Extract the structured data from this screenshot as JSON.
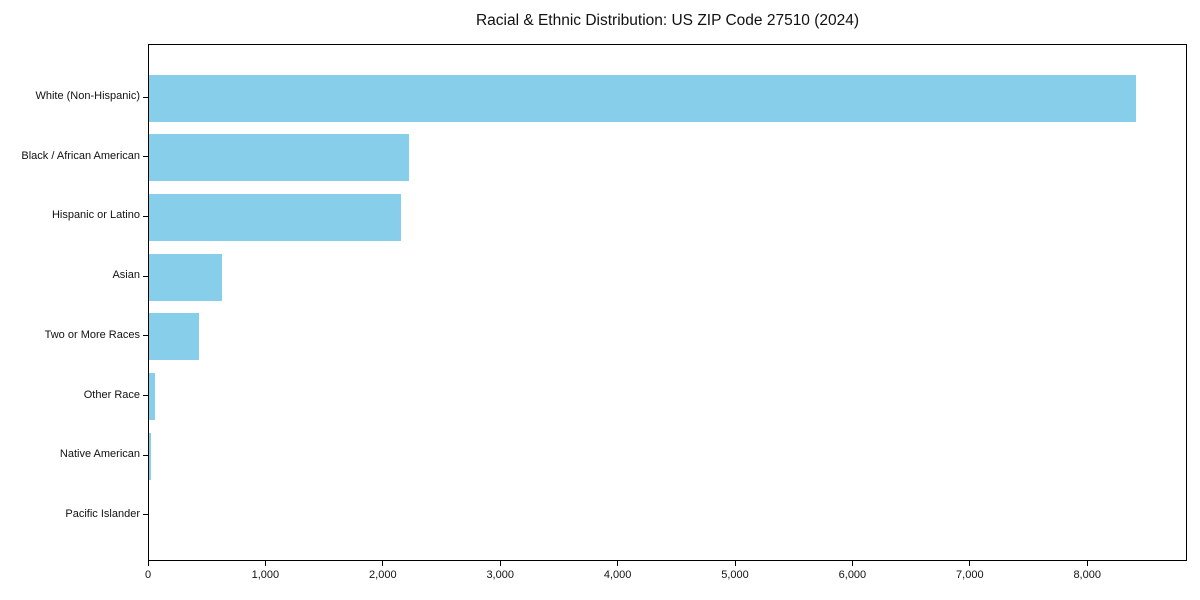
{
  "chart_data": {
    "type": "bar",
    "orientation": "horizontal",
    "title": "Racial & Ethnic Distribution: US ZIP Code 27510 (2024)",
    "categories": [
      "White (Non-Hispanic)",
      "Black / African American",
      "Hispanic or Latino",
      "Asian",
      "Two or More Races",
      "Other Race",
      "Native American",
      "Pacific Islander"
    ],
    "values": [
      8420,
      2220,
      2150,
      625,
      430,
      50,
      15,
      0
    ],
    "xlabel": "",
    "ylabel": "",
    "xlim": [
      0,
      8850
    ],
    "x_ticks": [
      0,
      1000,
      2000,
      3000,
      4000,
      5000,
      6000,
      7000,
      8000
    ],
    "x_tick_labels": [
      "0",
      "1,000",
      "2,000",
      "3,000",
      "4,000",
      "5,000",
      "6,000",
      "7,000",
      "8,000"
    ],
    "bar_color": "#87CEEB",
    "axis_color": "#000000",
    "background_color": "#ffffff",
    "grid": false,
    "legend_position": "none"
  }
}
